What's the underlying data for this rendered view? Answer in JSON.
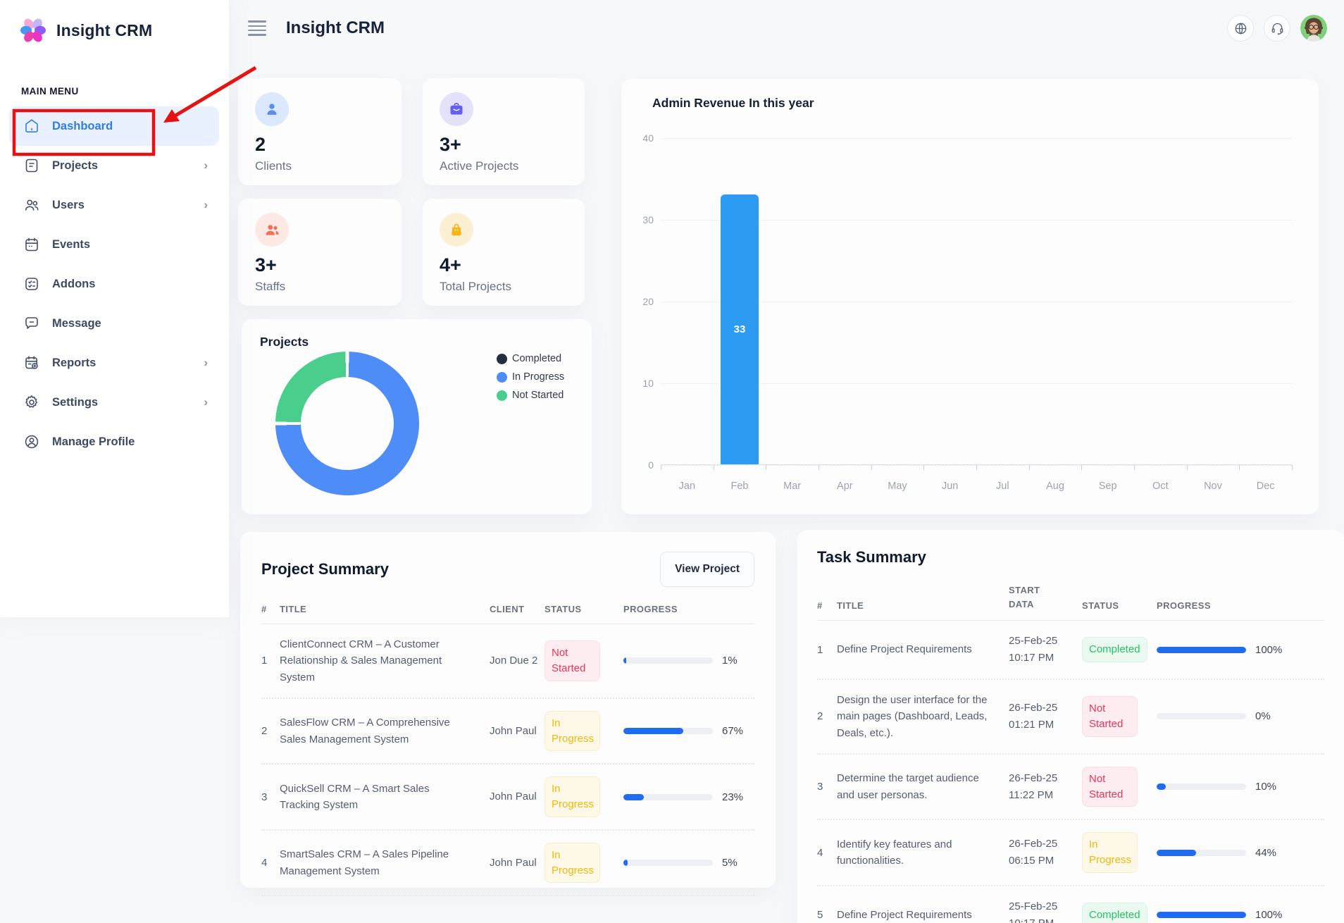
{
  "app": {
    "accent": "#2f7cec",
    "page_bg": "#f7f8fa",
    "progress_fill": "#1f6bf2"
  },
  "sidebar": {
    "logo_text": "Insight CRM",
    "section_label": "MAIN MENU",
    "items": [
      {
        "label": "Dashboard",
        "icon": "home-icon",
        "active": true,
        "has_submenu": false
      },
      {
        "label": "Projects",
        "icon": "document-icon",
        "active": false,
        "has_submenu": true
      },
      {
        "label": "Users",
        "icon": "users-icon",
        "active": false,
        "has_submenu": true
      },
      {
        "label": "Events",
        "icon": "calendar-icon",
        "active": false,
        "has_submenu": false
      },
      {
        "label": "Addons",
        "icon": "checklist-icon",
        "active": false,
        "has_submenu": false
      },
      {
        "label": "Message",
        "icon": "chat-icon",
        "active": false,
        "has_submenu": false
      },
      {
        "label": "Reports",
        "icon": "report-icon",
        "active": false,
        "has_submenu": true
      },
      {
        "label": "Settings",
        "icon": "gear-icon",
        "active": false,
        "has_submenu": true
      },
      {
        "label": "Manage Profile",
        "icon": "profile-icon",
        "active": false,
        "has_submenu": false
      }
    ]
  },
  "header": {
    "title": "Insight CRM",
    "icons": [
      "globe-icon",
      "headset-icon"
    ],
    "avatar": "user-avatar"
  },
  "stat_cards": [
    {
      "value": "2",
      "label": "Clients",
      "icon": "client-icon",
      "icon_color": "#5b8def",
      "icon_bg": "#dbe8fd"
    },
    {
      "value": "3+",
      "label": "Active Projects",
      "icon": "briefcase-icon",
      "icon_color": "#6360f0",
      "icon_bg": "#e4e1fb"
    },
    {
      "value": "3+",
      "label": "Staffs",
      "icon": "staff-icon",
      "icon_color": "#f0715a",
      "icon_bg": "#fde9e4"
    },
    {
      "value": "4+",
      "label": "Total Projects",
      "icon": "bag-icon",
      "icon_color": "#f2b51b",
      "icon_bg": "#fcf0d4"
    }
  ],
  "chart_data": [
    {
      "type": "pie",
      "title": "Projects",
      "labels": [
        "Completed",
        "In Progress",
        "Not Started"
      ],
      "values": [
        0,
        3,
        1
      ],
      "colors": [
        "#222f3e",
        "#4e8cf7",
        "#49cf8b"
      ],
      "legend_position": "right",
      "donut_hole": 0.65
    },
    {
      "type": "bar",
      "title": "Admin Revenue In this year",
      "categories": [
        "Jan",
        "Feb",
        "Mar",
        "Apr",
        "May",
        "Jun",
        "Jul",
        "Aug",
        "Sep",
        "Oct",
        "Nov",
        "Dec"
      ],
      "values": [
        0,
        33,
        0,
        0,
        0,
        0,
        0,
        0,
        0,
        0,
        0,
        0
      ],
      "data_labels": [
        "",
        "33",
        "",
        "",
        "",
        "",
        "",
        "",
        "",
        "",
        "",
        ""
      ],
      "xlabel": "",
      "ylabel": "",
      "ylim": [
        0,
        40
      ],
      "yticks": [
        0,
        10,
        20,
        30,
        40
      ],
      "grid": true,
      "bar_color": "#2e9bf2"
    }
  ],
  "project_summary": {
    "title": "Project Summary",
    "button_label": "View Project",
    "columns": [
      "#",
      "TITLE",
      "CLIENT",
      "STATUS",
      "PROGRESS"
    ],
    "rows": [
      {
        "num": "1",
        "title": "ClientConnect CRM – A Customer Relationship & Sales Management System",
        "client": "Jon Due 2",
        "status": "Not Started",
        "status_type": "danger",
        "progress": 1,
        "progress_label": "1%"
      },
      {
        "num": "2",
        "title": "SalesFlow CRM – A Comprehensive Sales Management System",
        "client": "John Paul",
        "status": "In Progress",
        "status_type": "warning",
        "progress": 67,
        "progress_label": "67%"
      },
      {
        "num": "3",
        "title": "QuickSell CRM – A Smart Sales Tracking System",
        "client": "John Paul",
        "status": "In Progress",
        "status_type": "warning",
        "progress": 23,
        "progress_label": "23%"
      },
      {
        "num": "4",
        "title": "SmartSales CRM – A Sales Pipeline Management System",
        "client": "John Paul",
        "status": "In Progress",
        "status_type": "warning",
        "progress": 5,
        "progress_label": "5%"
      }
    ]
  },
  "task_summary": {
    "title": "Task Summary",
    "columns": [
      "#",
      "TITLE",
      "START DATA",
      "STATUS",
      "PROGRESS"
    ],
    "rows": [
      {
        "num": "1",
        "title": "Define Project Requirements",
        "date_line1": "25-Feb-25",
        "date_line2": "10:17 PM",
        "status": "Completed",
        "status_type": "success",
        "progress": 100,
        "progress_label": "100%"
      },
      {
        "num": "2",
        "title": "Design the user interface for the main pages (Dashboard, Leads, Deals, etc.).",
        "date_line1": "26-Feb-25",
        "date_line2": "01:21 PM",
        "status": "Not Started",
        "status_type": "danger",
        "progress": 0,
        "progress_label": "0%"
      },
      {
        "num": "3",
        "title": "Determine the target audience and user personas.",
        "date_line1": "26-Feb-25",
        "date_line2": "11:22 PM",
        "status": "Not Started",
        "status_type": "danger",
        "progress": 10,
        "progress_label": "10%"
      },
      {
        "num": "4",
        "title": "Identify key features and functionalities.",
        "date_line1": "26-Feb-25",
        "date_line2": "06:15 PM",
        "status": "In Progress",
        "status_type": "warning",
        "progress": 44,
        "progress_label": "44%"
      },
      {
        "num": "5",
        "title": "Define Project Requirements",
        "date_line1": "25-Feb-25",
        "date_line2": "10:17 PM",
        "status": "Completed",
        "status_type": "success",
        "progress": 100,
        "progress_label": "100%"
      }
    ]
  },
  "status_styles": {
    "danger": {
      "text": "#ee3356",
      "bg": "#fdedf0",
      "border": "#fbdfe5"
    },
    "warning": {
      "text": "#efb90f",
      "bg": "#fdf8e8",
      "border": "#f8eecb"
    },
    "success": {
      "text": "#26c165",
      "bg": "#eafaf1",
      "border": "#d8f4e4"
    }
  },
  "annotation": {
    "highlight": "Dashboard menu item",
    "color": "#e51313"
  }
}
